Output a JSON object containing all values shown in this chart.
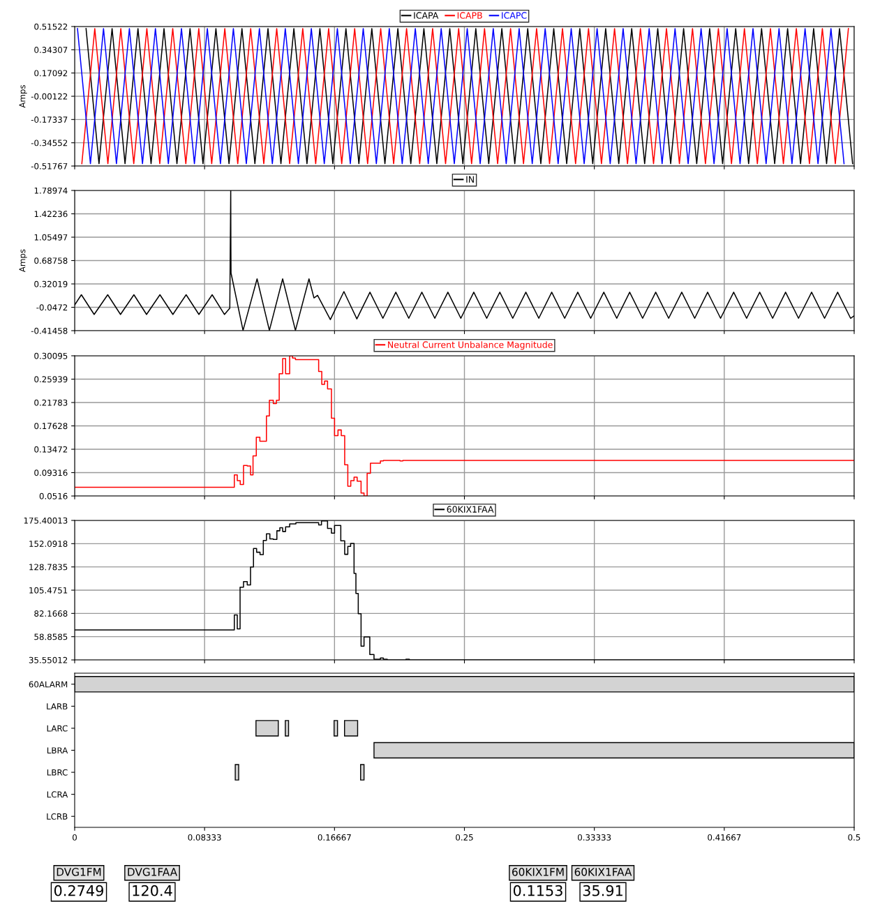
{
  "chart_data": [
    {
      "type": "line",
      "ylabel": "Amps",
      "legend": "top",
      "grid": true,
      "tick_labels": "y",
      "xlim": [
        0,
        0.5
      ],
      "xticks": [
        0,
        0.08333,
        0.16667,
        0.25,
        0.33333,
        0.41667,
        0.5
      ],
      "ylim": [
        -0.51767,
        0.51522
      ],
      "yticks": [
        0.51522,
        0.34307,
        0.17092,
        -0.00122,
        -0.17337,
        -0.34552,
        -0.51767
      ],
      "series": [
        {
          "name": "ICAPA",
          "color": "#000000",
          "x": [
            0.0073,
            0.0156,
            0.024,
            0.0323,
            0.0406,
            0.049,
            0.0573,
            0.0656,
            0.074,
            0.0823,
            0.0906,
            0.099,
            0.1073,
            0.1156,
            0.124,
            0.1323,
            0.1406,
            0.149,
            0.1573,
            0.1656,
            0.174,
            0.1823,
            0.1906,
            0.199,
            0.2073,
            0.2156,
            0.224,
            0.2323,
            0.2406,
            0.249,
            0.2573,
            0.2656,
            0.274,
            0.2823,
            0.2906,
            0.299,
            0.3073,
            0.3156,
            0.324,
            0.3323,
            0.3406,
            0.349,
            0.3573,
            0.3656,
            0.374,
            0.3823,
            0.3906,
            0.399,
            0.4073,
            0.4156,
            0.424,
            0.4323,
            0.4406,
            0.449,
            0.4573,
            0.4656,
            0.474,
            0.4823,
            0.4906,
            0.499
          ],
          "values": [
            0.5,
            -0.5,
            0.5,
            -0.5,
            0.5,
            -0.5,
            0.5,
            -0.5,
            0.5,
            -0.5,
            0.5,
            -0.5,
            0.5,
            -0.5,
            0.5,
            -0.5,
            0.5,
            -0.5,
            0.5,
            -0.5,
            0.5,
            -0.5,
            0.5,
            -0.5,
            0.5,
            -0.5,
            0.5,
            -0.5,
            0.5,
            -0.5,
            0.5,
            -0.5,
            0.5,
            -0.5,
            0.5,
            -0.5,
            0.5,
            -0.5,
            0.5,
            -0.5,
            0.5,
            -0.5,
            0.5,
            -0.5,
            0.5,
            -0.5,
            0.5,
            -0.5,
            0.5,
            -0.5,
            0.5,
            -0.5,
            0.5,
            -0.5,
            0.5,
            -0.5,
            0.5,
            -0.5,
            0.5,
            -0.5
          ]
        },
        {
          "name": "ICAPB",
          "color": "#ff0000",
          "x": [
            0.0046,
            0.0129,
            0.0213,
            0.0296,
            0.0379,
            0.0463,
            0.0546,
            0.0629,
            0.0713,
            0.0796,
            0.0879,
            0.0963,
            0.1046,
            0.1129,
            0.1213,
            0.1296,
            0.1379,
            0.1463,
            0.1546,
            0.1629,
            0.1713,
            0.1796,
            0.1879,
            0.1963,
            0.2046,
            0.2129,
            0.2213,
            0.2296,
            0.2379,
            0.2463,
            0.2546,
            0.2629,
            0.2713,
            0.2796,
            0.2879,
            0.2963,
            0.3046,
            0.3129,
            0.3213,
            0.3296,
            0.3379,
            0.3463,
            0.3546,
            0.3629,
            0.3713,
            0.3796,
            0.3879,
            0.3963,
            0.4046,
            0.4129,
            0.4213,
            0.4296,
            0.4379,
            0.4463,
            0.4546,
            0.4629,
            0.4713,
            0.4796,
            0.4879,
            0.4963
          ],
          "values": [
            -0.5,
            0.5,
            -0.5,
            0.5,
            -0.5,
            0.5,
            -0.5,
            0.5,
            -0.5,
            0.5,
            -0.5,
            0.5,
            -0.5,
            0.5,
            -0.5,
            0.5,
            -0.5,
            0.5,
            -0.5,
            0.5,
            -0.5,
            0.5,
            -0.5,
            0.5,
            -0.5,
            0.5,
            -0.5,
            0.5,
            -0.5,
            0.5,
            -0.5,
            0.5,
            -0.5,
            0.5,
            -0.5,
            0.5,
            -0.5,
            0.5,
            -0.5,
            0.5,
            -0.5,
            0.5,
            -0.5,
            0.5,
            -0.5,
            0.5,
            -0.5,
            0.5,
            -0.5,
            0.5,
            -0.5,
            0.5,
            -0.5,
            0.5,
            -0.5,
            0.5,
            -0.5,
            0.5,
            -0.5,
            0.5
          ]
        },
        {
          "name": "ICAPC",
          "color": "#0000ff",
          "x": [
            0.0018,
            0.0101,
            0.0185,
            0.0268,
            0.0351,
            0.0435,
            0.0518,
            0.0601,
            0.0685,
            0.0768,
            0.0851,
            0.0935,
            0.1018,
            0.1101,
            0.1185,
            0.1268,
            0.1351,
            0.1435,
            0.1518,
            0.1601,
            0.1685,
            0.1768,
            0.1851,
            0.1935,
            0.2018,
            0.2101,
            0.2185,
            0.2268,
            0.2351,
            0.2435,
            0.2518,
            0.2601,
            0.2685,
            0.2768,
            0.2851,
            0.2935,
            0.3018,
            0.3101,
            0.3185,
            0.3268,
            0.3351,
            0.3435,
            0.3518,
            0.3601,
            0.3685,
            0.3768,
            0.3851,
            0.3935,
            0.4018,
            0.4101,
            0.4185,
            0.4268,
            0.4351,
            0.4435,
            0.4518,
            0.4601,
            0.4685,
            0.4768,
            0.4851,
            0.4935
          ],
          "values": [
            0.5,
            -0.5,
            0.5,
            -0.5,
            0.5,
            -0.5,
            0.5,
            -0.5,
            0.5,
            -0.5,
            0.5,
            -0.5,
            0.5,
            -0.5,
            0.5,
            -0.5,
            0.5,
            -0.5,
            0.5,
            -0.5,
            0.5,
            -0.5,
            0.5,
            -0.5,
            0.5,
            -0.5,
            0.5,
            -0.5,
            0.5,
            -0.5,
            0.5,
            -0.5,
            0.5,
            -0.5,
            0.5,
            -0.5,
            0.5,
            -0.5,
            0.5,
            -0.5,
            0.5,
            -0.5,
            0.5,
            -0.5,
            0.5,
            -0.5,
            0.5,
            -0.5,
            0.5,
            -0.5,
            0.5,
            -0.5,
            0.5,
            -0.5,
            0.5,
            -0.5,
            0.5,
            -0.5,
            0.5,
            -0.5
          ]
        }
      ]
    },
    {
      "type": "line",
      "ylabel": "Amps",
      "legend": "top",
      "grid": true,
      "tick_labels": "y",
      "xlim": [
        0,
        0.5
      ],
      "xticks": [
        0,
        0.08333,
        0.16667,
        0.25,
        0.33333,
        0.41667,
        0.5
      ],
      "ylim": [
        -0.41458,
        1.78974
      ],
      "yticks": [
        1.78974,
        1.42236,
        1.05497,
        0.68758,
        0.32019,
        -0.0472,
        -0.41458
      ],
      "series": [
        {
          "name": "IN",
          "color": "#000000",
          "x": [
            0,
            0.0043,
            0.0125,
            0.0212,
            0.0294,
            0.038,
            0.0461,
            0.0547,
            0.063,
            0.0715,
            0.0797,
            0.0882,
            0.0961,
            0.0995,
            0.1001,
            0.1002,
            0.1003,
            0.108,
            0.117,
            0.1249,
            0.1334,
            0.1416,
            0.1503,
            0.1535,
            0.1558,
            0.164,
            0.1727,
            0.181,
            0.1894,
            0.1977,
            0.206,
            0.2143,
            0.2227,
            0.231,
            0.2394,
            0.2477,
            0.256,
            0.2643,
            0.2727,
            0.281,
            0.2894,
            0.2977,
            0.306,
            0.3143,
            0.3227,
            0.331,
            0.3394,
            0.3477,
            0.356,
            0.3643,
            0.3727,
            0.381,
            0.3894,
            0.3977,
            0.406,
            0.4143,
            0.4227,
            0.431,
            0.4394,
            0.4477,
            0.456,
            0.4643,
            0.4727,
            0.481,
            0.4894,
            0.4977,
            0.5
          ],
          "values": [
            -0.01,
            0.15,
            -0.16,
            0.15,
            -0.16,
            0.15,
            -0.16,
            0.15,
            -0.16,
            0.15,
            -0.16,
            0.15,
            -0.16,
            -0.06,
            1.78974,
            0.87,
            0.49,
            -0.41,
            0.4,
            -0.41,
            0.4,
            -0.41,
            0.4,
            0.1,
            0.14,
            -0.24,
            0.2,
            -0.23,
            0.19,
            -0.22,
            0.19,
            -0.22,
            0.19,
            -0.22,
            0.19,
            -0.22,
            0.19,
            -0.22,
            0.19,
            -0.22,
            0.19,
            -0.22,
            0.19,
            -0.22,
            0.19,
            -0.22,
            0.19,
            -0.22,
            0.19,
            -0.22,
            0.19,
            -0.22,
            0.19,
            -0.22,
            0.19,
            -0.22,
            0.19,
            -0.22,
            0.19,
            -0.22,
            0.19,
            -0.22,
            0.19,
            -0.22,
            0.19,
            -0.22,
            -0.18
          ]
        }
      ]
    },
    {
      "type": "step",
      "legend": "top",
      "grid": true,
      "tick_labels": "y",
      "xlim": [
        0,
        0.5
      ],
      "xticks": [
        0,
        0.08333,
        0.16667,
        0.25,
        0.33333,
        0.41667,
        0.5
      ],
      "ylim": [
        0.0516,
        0.30095
      ],
      "yticks": [
        0.30095,
        0.25939,
        0.21783,
        0.17628,
        0.13472,
        0.09316,
        0.0516
      ],
      "series": [
        {
          "name": "Neutral Current Unbalance Magnitude",
          "color": "#ff0000",
          "x": [
            0,
            0.1024,
            0.1043,
            0.1062,
            0.1083,
            0.1107,
            0.1128,
            0.1144,
            0.1165,
            0.1188,
            0.123,
            0.1249,
            0.1274,
            0.1294,
            0.1312,
            0.1334,
            0.1353,
            0.1379,
            0.1397,
            0.1416,
            0.1565,
            0.1585,
            0.1603,
            0.1622,
            0.1647,
            0.1667,
            0.1689,
            0.171,
            0.1732,
            0.1752,
            0.1771,
            0.1792,
            0.1812,
            0.1837,
            0.1856,
            0.1876,
            0.1897,
            0.1961,
            0.198,
            0.2087,
            0.2105,
            0.5
          ],
          "values": [
            0.067,
            0.089,
            0.079,
            0.072,
            0.106,
            0.105,
            0.089,
            0.123,
            0.156,
            0.149,
            0.194,
            0.222,
            0.216,
            0.222,
            0.269,
            0.296,
            0.269,
            0.30095,
            0.297,
            0.294,
            0.273,
            0.25,
            0.256,
            0.242,
            0.19,
            0.159,
            0.169,
            0.159,
            0.107,
            0.069,
            0.079,
            0.085,
            0.078,
            0.057,
            0.0516,
            0.092,
            0.11,
            0.114,
            0.115,
            0.114,
            0.115,
            0.115
          ]
        }
      ]
    },
    {
      "type": "step",
      "legend": "top",
      "grid": true,
      "tick_labels": "y",
      "xlim": [
        0,
        0.5
      ],
      "xticks": [
        0,
        0.08333,
        0.16667,
        0.25,
        0.33333,
        0.41667,
        0.5
      ],
      "ylim": [
        35.55012,
        175.40013
      ],
      "yticks": [
        175.40013,
        152.0918,
        128.7835,
        105.4751,
        82.1668,
        58.8585,
        35.55012
      ],
      "series": [
        {
          "name": "60KIX1FAA",
          "color": "#000000",
          "x": [
            0,
            0.1024,
            0.1043,
            0.1061,
            0.1083,
            0.1107,
            0.1128,
            0.1147,
            0.1167,
            0.1189,
            0.121,
            0.123,
            0.1252,
            0.1274,
            0.1297,
            0.1316,
            0.1334,
            0.1353,
            0.1379,
            0.1419,
            0.1565,
            0.1583,
            0.1622,
            0.1647,
            0.1667,
            0.1707,
            0.1732,
            0.1752,
            0.177,
            0.1792,
            0.1804,
            0.1819,
            0.1837,
            0.1856,
            0.1893,
            0.192,
            0.1961,
            0.198,
            0.2005,
            0.2125,
            0.2147,
            0.5
          ],
          "values": [
            65.6,
            80.6,
            66.7,
            108.4,
            114.1,
            110.7,
            128.7,
            147.2,
            143.5,
            141.2,
            155.3,
            162,
            156.9,
            156.4,
            165,
            168,
            164.3,
            168.9,
            171.9,
            173.1,
            170.8,
            174.9,
            167.3,
            162.7,
            170.3,
            155,
            141.4,
            149.3,
            152.3,
            122.2,
            102.1,
            81.8,
            49.4,
            58.6,
            40.9,
            36.2,
            37.4,
            36.2,
            35.55012,
            36.2,
            35.55012,
            35.55012
          ]
        }
      ]
    },
    {
      "type": "bar",
      "orientation": "horizontal",
      "categories": [
        "60ALARM",
        "LARB",
        "LARC",
        "LBRA",
        "LBRC",
        "LCRA",
        "LCRB"
      ],
      "xlim": [
        0,
        0.5
      ],
      "xticks": [
        0,
        0.08333,
        0.16667,
        0.25,
        0.33333,
        0.41667,
        0.5
      ],
      "series": [
        {
          "color": "#d3d3d3",
          "values": [
            0.5,
            null,
            0.0143,
            0.308,
            0.0022,
            null,
            null
          ],
          "base": [
            0,
            null,
            0.1163,
            0.192,
            0.103,
            null,
            null
          ]
        },
        {
          "color": "#d3d3d3",
          "values": [
            null,
            null,
            0.0021,
            null,
            0.0022,
            null,
            null
          ],
          "base": [
            null,
            null,
            0.1351,
            null,
            0.1834,
            null,
            null
          ]
        },
        {
          "color": "#d3d3d3",
          "values": [
            null,
            null,
            0.0022,
            null,
            null,
            null,
            null
          ],
          "base": [
            null,
            null,
            0.1664,
            null,
            null,
            null,
            null
          ]
        },
        {
          "color": "#d3d3d3",
          "values": [
            null,
            null,
            0.0084,
            null,
            null,
            null,
            null
          ],
          "base": [
            null,
            null,
            0.1731,
            null,
            null,
            null,
            null
          ]
        }
      ]
    },
    {
      "type": "other",
      "categories": [
        "DVG1FM",
        "DVG1FAA",
        "60KIX1FM",
        "60KIX1FAA"
      ],
      "value_labels": [
        "0.2749",
        "120.4",
        "0.1153",
        "35.91"
      ]
    }
  ]
}
